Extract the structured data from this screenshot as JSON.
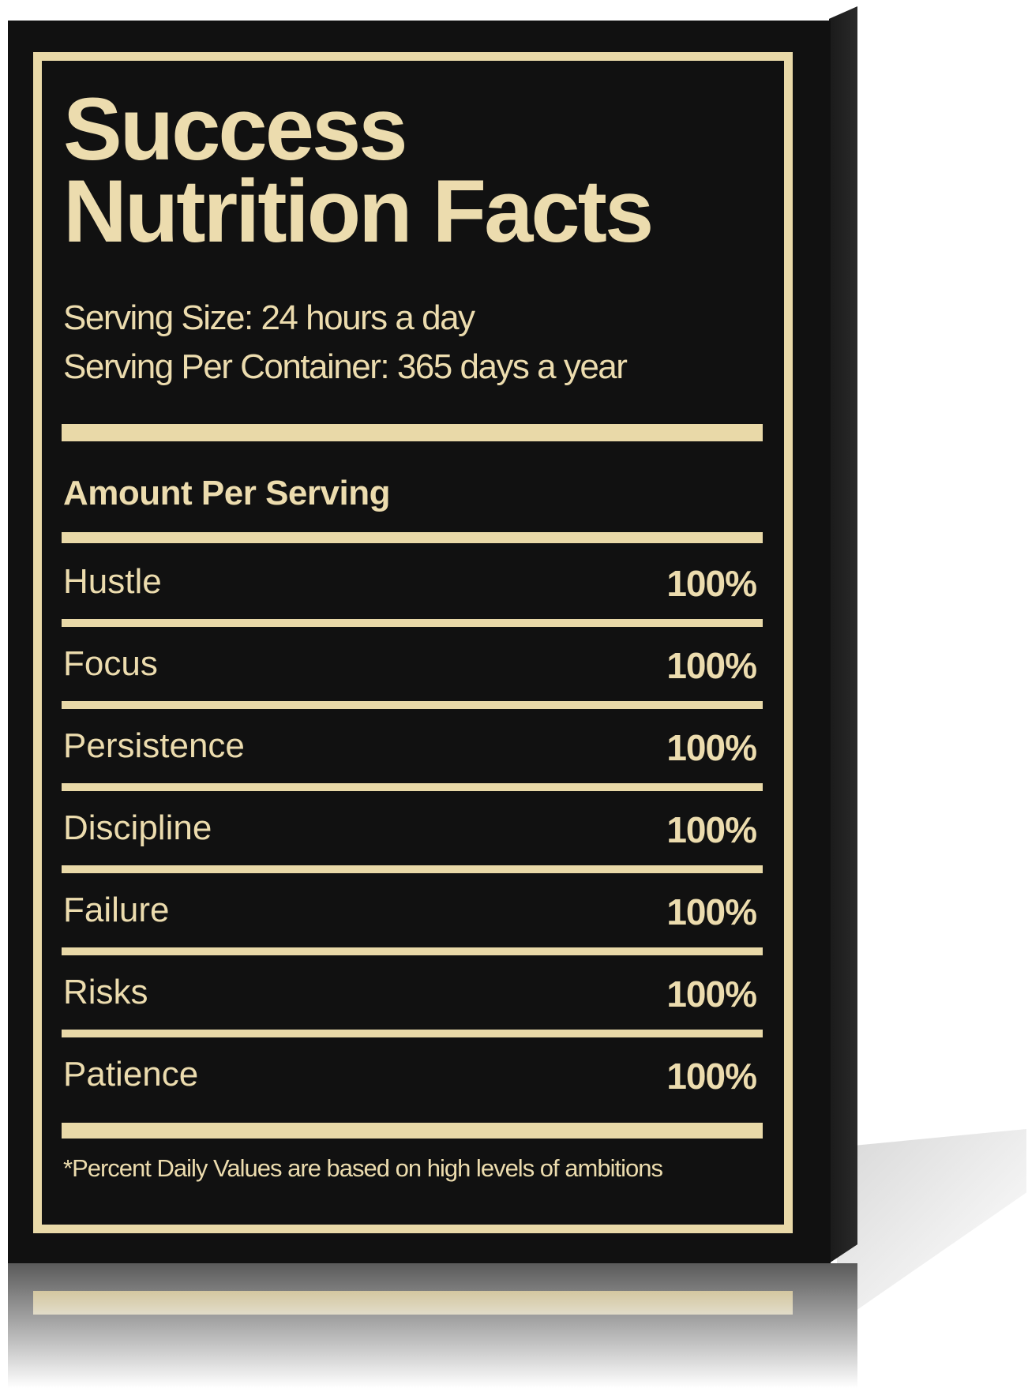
{
  "poster": {
    "title_line1": "Success",
    "title_line2": "Nutrition Facts",
    "serving_size": "Serving Size: 24 hours a day",
    "servings_per_container": "Serving Per Container: 365 days a year",
    "amount_per_serving": "Amount Per Serving",
    "rows": [
      {
        "label": "Hustle",
        "value": "100%"
      },
      {
        "label": "Focus",
        "value": "100%"
      },
      {
        "label": "Persistence",
        "value": "100%"
      },
      {
        "label": "Discipline",
        "value": "100%"
      },
      {
        "label": "Failure",
        "value": "100%"
      },
      {
        "label": "Risks",
        "value": "100%"
      },
      {
        "label": "Patience",
        "value": "100%"
      }
    ],
    "footnote": "*Percent Daily Values are based on high levels of ambitions"
  },
  "colors": {
    "background": "#111111",
    "gold": "#ecdcae"
  }
}
